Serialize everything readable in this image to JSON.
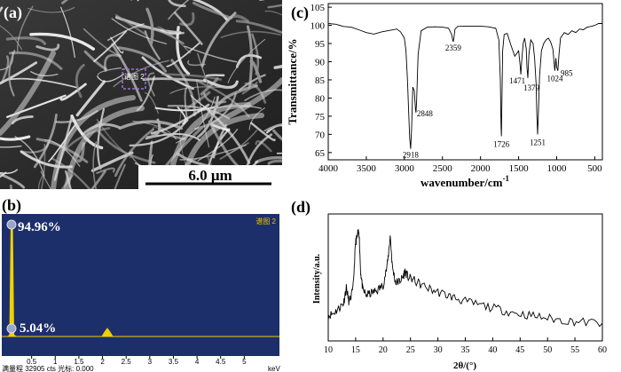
{
  "panel_a": {
    "label": "(a)",
    "spectrum_tag": "谱图 2",
    "scale_bar": "6.0 μm"
  },
  "panel_b": {
    "label": "(b)",
    "spectrum_tag": "谱图 2",
    "peak1_pct": "94.96%",
    "peak2_pct": "5.04%",
    "x_ticks": [
      "0.5",
      "1",
      "1.5",
      "2",
      "2.5",
      "3",
      "3.5",
      "4",
      "4.5",
      "5"
    ],
    "x_unit": "keV",
    "status": "满量程 32905 cts 光标: 0.000"
  },
  "chart_data": [
    {
      "panel": "(c)",
      "type": "line",
      "xlabel": "wavenumber/cm",
      "xlabel_sup": "-1",
      "ylabel": "Transmittance/%",
      "xlim": [
        4000,
        400
      ],
      "ylim": [
        63,
        106
      ],
      "x_ticks": [
        "4000",
        "3500",
        "3000",
        "2500",
        "2000",
        "1500",
        "1000",
        "500"
      ],
      "y_ticks": [
        "65",
        "70",
        "75",
        "80",
        "85",
        "90",
        "95",
        "100",
        "105"
      ],
      "peak_labels": [
        "2918",
        "2848",
        "2359",
        "1726",
        "1471",
        "1379",
        "1251",
        "1024",
        "985"
      ],
      "series": [
        {
          "x": [
            4000,
            3900,
            3800,
            3700,
            3600,
            3500,
            3400,
            3300,
            3200,
            3100,
            3050,
            3000,
            2980,
            2960,
            2940,
            2930,
            2918,
            2905,
            2890,
            2870,
            2855,
            2848,
            2840,
            2820,
            2780,
            2700,
            2600,
            2500,
            2420,
            2380,
            2365,
            2359,
            2350,
            2335,
            2300,
            2200,
            2100,
            2000,
            1900,
            1800,
            1760,
            1740,
            1730,
            1726,
            1720,
            1710,
            1690,
            1650,
            1600,
            1550,
            1500,
            1480,
            1471,
            1460,
            1440,
            1420,
            1400,
            1390,
            1379,
            1365,
            1340,
            1310,
            1290,
            1270,
            1260,
            1251,
            1240,
            1225,
            1200,
            1170,
            1140,
            1110,
            1080,
            1050,
            1035,
            1024,
            1010,
            1000,
            985,
            970,
            950,
            900,
            850,
            800,
            750,
            700,
            650,
            600,
            550,
            500,
            450,
            400
          ],
          "y": [
            100.5,
            100.3,
            99.7,
            99.5,
            98.8,
            98.0,
            97.6,
            98.2,
            98.6,
            99.0,
            98.2,
            96.5,
            93.0,
            85.0,
            74.0,
            69.0,
            66.0,
            72.0,
            83.0,
            82.0,
            77.0,
            76.0,
            79.0,
            92.0,
            98.5,
            99.5,
            99.6,
            99.5,
            99.2,
            97.5,
            96.0,
            95.5,
            96.5,
            99.0,
            99.7,
            99.8,
            99.8,
            99.8,
            99.6,
            99.2,
            96.0,
            85.0,
            72.0,
            69.5,
            78.0,
            93.0,
            97.5,
            97.8,
            94.5,
            91.5,
            93.0,
            89.0,
            86.5,
            90.0,
            95.0,
            96.5,
            93.5,
            88.5,
            85.5,
            92.0,
            96.0,
            95.0,
            91.0,
            84.0,
            75.0,
            70.0,
            76.0,
            86.0,
            93.0,
            95.0,
            96.0,
            96.5,
            95.5,
            93.5,
            90.0,
            87.5,
            91.0,
            88.5,
            87.5,
            92.0,
            96.5,
            98.0,
            97.5,
            98.5,
            98.0,
            99.0,
            98.8,
            99.5,
            99.7,
            100.0,
            100.5,
            100.5
          ]
        }
      ]
    },
    {
      "panel": "(d)",
      "type": "line",
      "xlabel": "2θ/(°)",
      "ylabel": "Intensity/a.u.",
      "xlim": [
        10,
        60
      ],
      "ylim": [
        0,
        100
      ],
      "x_ticks": [
        "10",
        "15",
        "20",
        "25",
        "30",
        "35",
        "40",
        "45",
        "50",
        "55",
        "60"
      ],
      "series": [
        {
          "x": [
            10,
            11,
            12,
            12.8,
            13.3,
            13.8,
            14.5,
            15.0,
            15.3,
            15.6,
            15.9,
            16.3,
            17,
            18,
            19,
            20,
            20.8,
            21.3,
            21.7,
            22.3,
            23,
            23.6,
            24.0,
            24.6,
            25.5,
            27,
            29,
            31,
            33,
            35,
            38,
            41,
            44,
            47,
            50,
            53,
            56,
            60
          ],
          "y": [
            20,
            22,
            26,
            30,
            42,
            30,
            40,
            78,
            82,
            88,
            55,
            40,
            36,
            38,
            40,
            44,
            60,
            83,
            58,
            46,
            47,
            50,
            55,
            50,
            48,
            44,
            40,
            37,
            34,
            31,
            28,
            25,
            22,
            20,
            18,
            16,
            15,
            14
          ]
        }
      ]
    }
  ]
}
